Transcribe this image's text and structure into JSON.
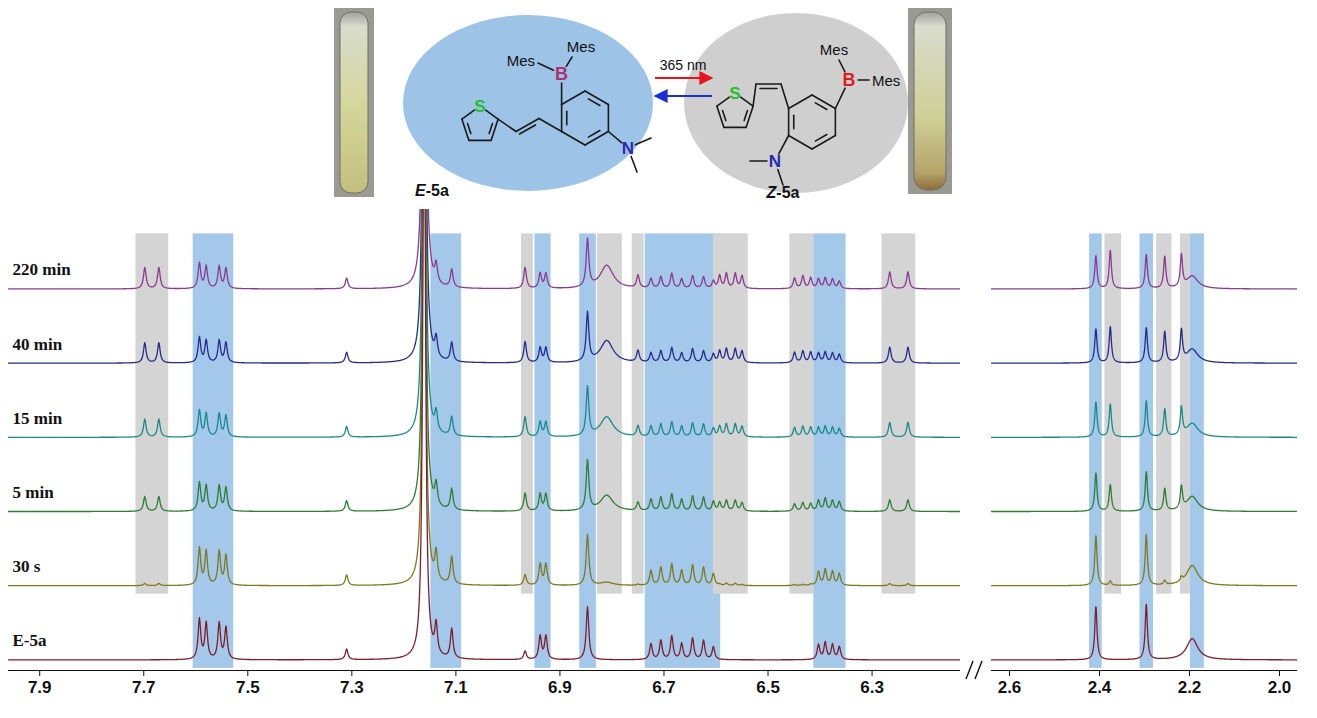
{
  "chart_data": {
    "type": "line",
    "tick_labels": "x",
    "panels": [
      {
        "xlim": [
          7.96,
          6.13
        ],
        "xticks": [
          7.9,
          7.7,
          7.5,
          7.3,
          7.1,
          6.9,
          6.7,
          6.5,
          6.3
        ]
      },
      {
        "xlim": [
          2.64,
          1.96
        ],
        "xticks": [
          2.6,
          2.4,
          2.2,
          {
            "value": 2,
            "label": "2.0"
          }
        ]
      }
    ],
    "series": [
      {
        "name": "220 min",
        "color": "#8b3a8f",
        "peaks": [
          [
            7.698,
            20
          ],
          [
            7.671,
            20
          ],
          [
            7.593,
            24
          ],
          [
            7.58,
            21
          ],
          [
            7.555,
            21
          ],
          [
            7.542,
            19
          ],
          [
            7.31,
            10
          ],
          [
            7.161,
            600
          ],
          [
            7.138,
            17
          ],
          [
            7.108,
            17
          ],
          [
            6.967,
            20
          ],
          [
            6.938,
            14
          ],
          [
            6.927,
            14
          ],
          [
            6.847,
            45
          ],
          [
            6.81,
            22,
            true
          ],
          [
            6.75,
            12
          ],
          [
            6.725,
            9
          ],
          [
            6.706,
            11
          ],
          [
            6.685,
            14
          ],
          [
            6.666,
            9
          ],
          [
            6.645,
            12
          ],
          [
            6.624,
            11
          ],
          [
            6.605,
            7
          ],
          [
            6.593,
            12
          ],
          [
            6.58,
            14
          ],
          [
            6.563,
            14
          ],
          [
            6.55,
            12
          ],
          [
            6.449,
            10
          ],
          [
            6.433,
            12
          ],
          [
            6.418,
            10
          ],
          [
            6.403,
            9
          ],
          [
            6.39,
            10
          ],
          [
            6.376,
            9
          ],
          [
            6.363,
            7
          ],
          [
            6.266,
            16
          ],
          [
            6.231,
            16
          ],
          [
            2.408,
            31
          ],
          [
            2.376,
            36
          ],
          [
            2.296,
            32
          ],
          [
            2.255,
            30
          ],
          [
            2.218,
            30
          ],
          [
            2.194,
            12,
            true
          ]
        ]
      },
      {
        "name": "40 min",
        "color": "#262a8c",
        "peaks": [
          [
            7.698,
            19
          ],
          [
            7.671,
            19
          ],
          [
            7.593,
            24
          ],
          [
            7.58,
            21
          ],
          [
            7.555,
            21
          ],
          [
            7.542,
            19
          ],
          [
            7.31,
            10
          ],
          [
            7.161,
            600
          ],
          [
            7.138,
            18
          ],
          [
            7.108,
            18
          ],
          [
            6.967,
            20
          ],
          [
            6.938,
            14
          ],
          [
            6.927,
            14
          ],
          [
            6.847,
            46
          ],
          [
            6.81,
            21,
            true
          ],
          [
            6.75,
            11
          ],
          [
            6.725,
            9
          ],
          [
            6.706,
            11
          ],
          [
            6.685,
            14
          ],
          [
            6.666,
            9
          ],
          [
            6.645,
            13
          ],
          [
            6.624,
            11
          ],
          [
            6.605,
            8
          ],
          [
            6.593,
            11
          ],
          [
            6.58,
            13
          ],
          [
            6.563,
            13
          ],
          [
            6.55,
            11
          ],
          [
            6.449,
            10
          ],
          [
            6.433,
            11
          ],
          [
            6.418,
            10
          ],
          [
            6.403,
            9
          ],
          [
            6.39,
            10
          ],
          [
            6.376,
            9
          ],
          [
            6.363,
            8
          ],
          [
            6.266,
            15
          ],
          [
            6.231,
            15
          ],
          [
            2.408,
            32
          ],
          [
            2.376,
            34
          ],
          [
            2.296,
            33
          ],
          [
            2.255,
            29
          ],
          [
            2.218,
            29
          ],
          [
            2.194,
            13,
            true
          ]
        ]
      },
      {
        "name": "15 min",
        "color": "#198a8a",
        "peaks": [
          [
            7.698,
            17
          ],
          [
            7.671,
            17
          ],
          [
            7.593,
            25
          ],
          [
            7.58,
            22
          ],
          [
            7.555,
            22
          ],
          [
            7.542,
            20
          ],
          [
            7.31,
            10
          ],
          [
            7.161,
            600
          ],
          [
            7.138,
            18
          ],
          [
            7.108,
            18
          ],
          [
            6.967,
            19
          ],
          [
            6.938,
            14
          ],
          [
            6.927,
            14
          ],
          [
            6.847,
            46
          ],
          [
            6.81,
            19,
            true
          ],
          [
            6.75,
            10
          ],
          [
            6.725,
            10
          ],
          [
            6.706,
            12
          ],
          [
            6.685,
            14
          ],
          [
            6.666,
            10
          ],
          [
            6.645,
            13
          ],
          [
            6.624,
            12
          ],
          [
            6.605,
            8
          ],
          [
            6.593,
            10
          ],
          [
            6.58,
            12
          ],
          [
            6.563,
            12
          ],
          [
            6.55,
            10
          ],
          [
            6.449,
            9
          ],
          [
            6.433,
            10
          ],
          [
            6.418,
            9
          ],
          [
            6.403,
            9
          ],
          [
            6.39,
            10
          ],
          [
            6.376,
            9
          ],
          [
            6.363,
            8
          ],
          [
            6.266,
            14
          ],
          [
            6.231,
            14
          ],
          [
            2.408,
            33
          ],
          [
            2.376,
            31
          ],
          [
            2.296,
            34
          ],
          [
            2.255,
            26
          ],
          [
            2.218,
            26
          ],
          [
            2.194,
            13,
            true
          ]
        ]
      },
      {
        "name": "5 min",
        "color": "#2e7d32",
        "peaks": [
          [
            7.698,
            14
          ],
          [
            7.671,
            14
          ],
          [
            7.593,
            27
          ],
          [
            7.58,
            24
          ],
          [
            7.555,
            24
          ],
          [
            7.542,
            22
          ],
          [
            7.31,
            10
          ],
          [
            7.161,
            600
          ],
          [
            7.138,
            20
          ],
          [
            7.108,
            20
          ],
          [
            6.967,
            17
          ],
          [
            6.938,
            16
          ],
          [
            6.927,
            16
          ],
          [
            6.847,
            47
          ],
          [
            6.81,
            15,
            true
          ],
          [
            6.75,
            8
          ],
          [
            6.725,
            11
          ],
          [
            6.706,
            13
          ],
          [
            6.685,
            16
          ],
          [
            6.666,
            11
          ],
          [
            6.645,
            14
          ],
          [
            6.624,
            13
          ],
          [
            6.605,
            9
          ],
          [
            6.593,
            8
          ],
          [
            6.58,
            10
          ],
          [
            6.563,
            10
          ],
          [
            6.55,
            8
          ],
          [
            6.449,
            7
          ],
          [
            6.433,
            8
          ],
          [
            6.418,
            7
          ],
          [
            6.403,
            10
          ],
          [
            6.39,
            12
          ],
          [
            6.376,
            10
          ],
          [
            6.363,
            9
          ],
          [
            6.266,
            11
          ],
          [
            6.231,
            11
          ],
          [
            2.408,
            36
          ],
          [
            2.376,
            25
          ],
          [
            2.296,
            37
          ],
          [
            2.255,
            21
          ],
          [
            2.218,
            21
          ],
          [
            2.194,
            14,
            true
          ]
        ]
      },
      {
        "name": "30 s",
        "color": "#7d7a1e",
        "peaks": [
          [
            7.698,
            2
          ],
          [
            7.671,
            2
          ],
          [
            7.593,
            35
          ],
          [
            7.58,
            32
          ],
          [
            7.555,
            32
          ],
          [
            7.542,
            28
          ],
          [
            7.31,
            10
          ],
          [
            7.161,
            600
          ],
          [
            7.138,
            26
          ],
          [
            7.108,
            26
          ],
          [
            6.967,
            10
          ],
          [
            6.938,
            20
          ],
          [
            6.927,
            20
          ],
          [
            6.847,
            48
          ],
          [
            6.81,
            3,
            true
          ],
          [
            6.75,
            1
          ],
          [
            6.725,
            14
          ],
          [
            6.706,
            17
          ],
          [
            6.685,
            20
          ],
          [
            6.666,
            14
          ],
          [
            6.645,
            19
          ],
          [
            6.624,
            17
          ],
          [
            6.605,
            11
          ],
          [
            6.593,
            1
          ],
          [
            6.58,
            2
          ],
          [
            6.563,
            2
          ],
          [
            6.55,
            1
          ],
          [
            6.449,
            1
          ],
          [
            6.433,
            1
          ],
          [
            6.418,
            1
          ],
          [
            6.403,
            13
          ],
          [
            6.39,
            15
          ],
          [
            6.376,
            13
          ],
          [
            6.363,
            11
          ],
          [
            6.266,
            2
          ],
          [
            6.231,
            2
          ],
          [
            2.408,
            47
          ],
          [
            2.376,
            4
          ],
          [
            2.296,
            48
          ],
          [
            2.255,
            4
          ],
          [
            2.218,
            4
          ],
          [
            2.194,
            19,
            true
          ]
        ]
      },
      {
        "name": "E-5a",
        "color": "#7f1d2d",
        "peaks": [
          [
            7.593,
            38
          ],
          [
            7.58,
            34
          ],
          [
            7.555,
            34
          ],
          [
            7.542,
            30
          ],
          [
            7.31,
            10
          ],
          [
            7.161,
            600
          ],
          [
            7.138,
            28
          ],
          [
            7.108,
            28
          ],
          [
            6.967,
            8
          ],
          [
            6.938,
            22
          ],
          [
            6.927,
            22
          ],
          [
            6.847,
            50
          ],
          [
            6.725,
            15
          ],
          [
            6.706,
            18
          ],
          [
            6.685,
            22
          ],
          [
            6.666,
            15
          ],
          [
            6.645,
            20
          ],
          [
            6.624,
            18
          ],
          [
            6.605,
            12
          ],
          [
            6.403,
            14
          ],
          [
            6.39,
            16
          ],
          [
            6.376,
            14
          ],
          [
            6.363,
            12
          ],
          [
            2.408,
            50
          ],
          [
            2.296,
            52
          ],
          [
            2.194,
            20,
            true
          ]
        ]
      }
    ],
    "highlights": [
      {
        "x": [
          7.715,
          7.652
        ],
        "color": "#d4d4d4",
        "from": "30 s"
      },
      {
        "x": [
          7.605,
          7.527
        ],
        "color": "#a4c8ea",
        "from": "E-5a"
      },
      {
        "x": [
          7.148,
          7.089
        ],
        "color": "#a4c8ea",
        "from": "E-5a"
      },
      {
        "x": [
          6.974,
          6.951
        ],
        "color": "#d4d4d4",
        "from": "30 s"
      },
      {
        "x": [
          6.948,
          6.917
        ],
        "color": "#a4c8ea",
        "from": "E-5a"
      },
      {
        "x": [
          6.862,
          6.83
        ],
        "color": "#a4c8ea",
        "from": "E-5a"
      },
      {
        "x": [
          6.828,
          6.78
        ],
        "color": "#d4d4d4",
        "from": "30 s"
      },
      {
        "x": [
          6.761,
          6.738
        ],
        "color": "#d4d4d4",
        "from": "30 s"
      },
      {
        "x": [
          6.736,
          6.591
        ],
        "color": "#a4c8ea",
        "from": "E-5a"
      },
      {
        "x": [
          6.605,
          6.538
        ],
        "color": "#d4d4d4",
        "from": "30 s"
      },
      {
        "x": [
          6.458,
          6.412
        ],
        "color": "#d4d4d4",
        "from": "30 s"
      },
      {
        "x": [
          6.412,
          6.35
        ],
        "color": "#a4c8ea",
        "from": "E-5a"
      },
      {
        "x": [
          6.281,
          6.216
        ],
        "color": "#d4d4d4",
        "from": "30 s"
      },
      {
        "x": [
          2.422,
          2.394
        ],
        "color": "#a4c8ea",
        "from": "E-5a"
      },
      {
        "x": [
          2.388,
          2.351
        ],
        "color": "#d4d4d4",
        "from": "30 s"
      },
      {
        "x": [
          2.31,
          2.28
        ],
        "color": "#a4c8ea",
        "from": "E-5a"
      },
      {
        "x": [
          2.273,
          2.239
        ],
        "color": "#d4d4d4",
        "from": "30 s"
      },
      {
        "x": [
          2.22,
          2.198
        ],
        "color": "#d4d4d4",
        "from": "30 s"
      },
      {
        "x": [
          2.198,
          2.167
        ],
        "color": "#a4c8ea",
        "from": "E-5a"
      }
    ]
  },
  "scheme": {
    "arrow_label": "365 nm",
    "compounds": [
      {
        "name": "E-5a",
        "groups": [
          "Mes",
          "Mes"
        ],
        "atoms": {
          "boron": "B",
          "sulfur": "S",
          "nitrogen": "N"
        },
        "color": "#9dc3e6"
      },
      {
        "name": "Z-5a",
        "groups": [
          "Mes",
          "Mes"
        ],
        "atoms": {
          "boron": "B",
          "sulfur": "S",
          "nitrogen": "N"
        },
        "color": "#cfcfcf"
      }
    ]
  }
}
